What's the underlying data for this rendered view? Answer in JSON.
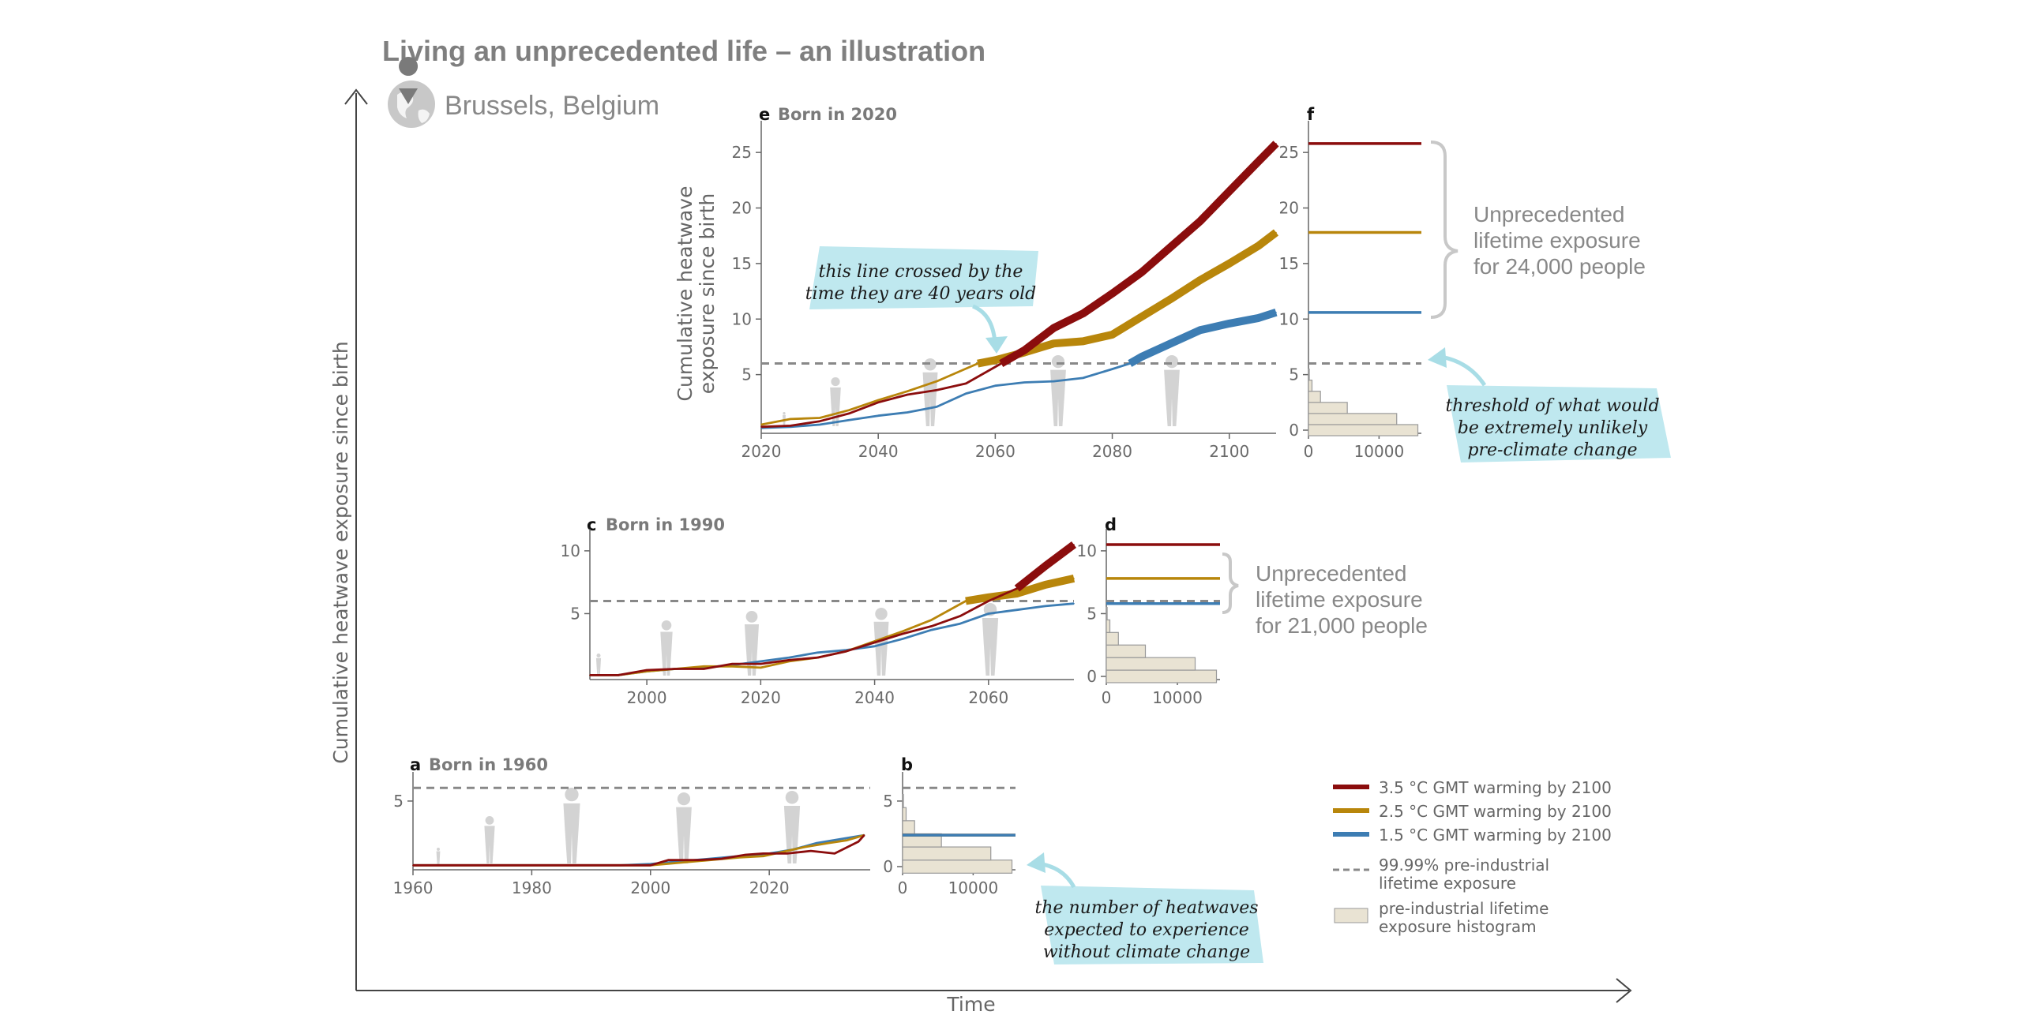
{
  "page": {
    "title": "Living an unprecedented life – an illustration",
    "location": "Brussels, Belgium",
    "outer_y_label": "Cumulative heatwave exposure since birth",
    "outer_x_label": "Time"
  },
  "colors": {
    "s35": "#8b0d0d",
    "s25": "#b8860b",
    "s15": "#3d7db3",
    "threshold": "#888888",
    "hist": "#e9e3d3",
    "callout": "#bfe8ef",
    "silhouette": "#d3d3d3"
  },
  "legend": {
    "items": [
      {
        "label": "3.5 °C GMT warming by 2100",
        "kind": "line",
        "color": "#8b0d0d"
      },
      {
        "label": "2.5 °C GMT warming by 2100",
        "kind": "line",
        "color": "#b8860b"
      },
      {
        "label": "1.5 °C GMT warming by 2100",
        "kind": "line",
        "color": "#3d7db3"
      },
      {
        "label": "99.99% pre-industrial",
        "label2": "lifetime exposure",
        "kind": "dash",
        "color": "#888888"
      },
      {
        "label": "pre-industrial lifetime",
        "label2": "exposure histogram",
        "kind": "box",
        "color": "#e9e3d3"
      }
    ]
  },
  "annotations": {
    "crossed": [
      "this line crossed by the",
      "time they are 40 years old"
    ],
    "threshold": [
      "threshold of what would",
      "be extremely unlikely",
      "pre-climate change"
    ],
    "heatwaves": [
      "the number of heatwaves",
      "expected to experience",
      "without climate change"
    ],
    "unprecedented_f": [
      "Unprecedented",
      "lifetime exposure",
      "for 24,000 people"
    ],
    "unprecedented_d": [
      "Unprecedented",
      "lifetime exposure",
      "for 21,000 people"
    ]
  },
  "chart_data": [
    {
      "id": "a",
      "type": "line",
      "title": "Born in 1960",
      "xlim": [
        1960,
        2037
      ],
      "ylim": [
        0,
        6.5
      ],
      "xticks": [
        1960,
        1980,
        2000,
        2020
      ],
      "yticks": [
        5
      ],
      "threshold": 6,
      "series": [
        {
          "name": "3.5 °C GMT warming by 2100",
          "color": "#8b0d0d",
          "x": [
            1960,
            1990,
            2000,
            2003,
            2008,
            2012,
            2016,
            2019,
            2023,
            2027,
            2031,
            2035,
            2036
          ],
          "y": [
            0.1,
            0.1,
            0.1,
            0.5,
            0.5,
            0.6,
            0.9,
            1.0,
            1.0,
            1.2,
            1.0,
            1.9,
            2.4
          ]
        },
        {
          "name": "2.5 °C GMT warming by 2100",
          "color": "#b8860b",
          "x": [
            1960,
            1990,
            2000,
            2005,
            2010,
            2015,
            2019,
            2023,
            2026,
            2030,
            2033,
            2036
          ],
          "y": [
            0.1,
            0.1,
            0.1,
            0.3,
            0.5,
            0.7,
            0.8,
            1.2,
            1.5,
            1.8,
            2.0,
            2.4
          ]
        },
        {
          "name": "1.5 °C GMT warming by 2100",
          "color": "#3d7db3",
          "x": [
            1960,
            1995,
            2000,
            2005,
            2010,
            2015,
            2020,
            2024,
            2028,
            2032,
            2036
          ],
          "y": [
            0.1,
            0.1,
            0.2,
            0.4,
            0.6,
            0.8,
            1.0,
            1.3,
            1.8,
            2.1,
            2.4
          ]
        }
      ]
    },
    {
      "id": "b",
      "type": "histogram",
      "title": "",
      "xlim": [
        0,
        16000
      ],
      "ylim": [
        0,
        6.5
      ],
      "xticks": [
        0,
        10000
      ],
      "yticks": [
        0,
        5
      ],
      "threshold": 6,
      "bins": [
        {
          "y0": -0.5,
          "y1": 0.5,
          "count": 15500
        },
        {
          "y0": 0.5,
          "y1": 1.5,
          "count": 12500
        },
        {
          "y0": 1.5,
          "y1": 2.5,
          "count": 5500
        },
        {
          "y0": 2.5,
          "y1": 3.5,
          "count": 1700
        },
        {
          "y0": 3.5,
          "y1": 4.5,
          "count": 500
        },
        {
          "y0": 4.5,
          "y1": 5.5,
          "count": 120
        }
      ],
      "levels": [
        {
          "name": "3.5 °C GMT warming by 2100",
          "color": "#8b0d0d",
          "value": 2.4
        },
        {
          "name": "2.5 °C GMT warming by 2100",
          "color": "#b8860b",
          "value": 2.4
        },
        {
          "name": "1.5 °C GMT warming by 2100",
          "color": "#3d7db3",
          "value": 2.4
        }
      ]
    },
    {
      "id": "c",
      "type": "line",
      "title": "Born in 1990",
      "xlim": [
        1990,
        2075
      ],
      "ylim": [
        0,
        11
      ],
      "xticks": [
        2000,
        2020,
        2040,
        2060
      ],
      "yticks": [
        5,
        10
      ],
      "threshold": 6,
      "thick_start": {
        "3.5 °C GMT warming by 2100": 2061,
        "2.5 °C GMT warming by 2100": 2056
      },
      "series": [
        {
          "name": "3.5 °C GMT warming by 2100",
          "color": "#8b0d0d",
          "x": [
            1990,
            1995,
            2000,
            2005,
            2010,
            2015,
            2020,
            2025,
            2030,
            2035,
            2040,
            2045,
            2050,
            2055,
            2060,
            2065,
            2070,
            2075
          ],
          "y": [
            0.1,
            0.1,
            0.5,
            0.6,
            0.6,
            1.0,
            1.0,
            1.3,
            1.5,
            2.0,
            2.7,
            3.4,
            4.0,
            4.8,
            6.0,
            7.0,
            8.8,
            10.5
          ]
        },
        {
          "name": "2.5 °C GMT warming by 2100",
          "color": "#b8860b",
          "x": [
            1990,
            1995,
            2000,
            2005,
            2010,
            2015,
            2020,
            2025,
            2030,
            2035,
            2040,
            2045,
            2050,
            2056,
            2060,
            2065,
            2070,
            2075
          ],
          "y": [
            0.1,
            0.1,
            0.4,
            0.6,
            0.8,
            0.8,
            0.7,
            1.2,
            1.5,
            2.0,
            2.8,
            3.6,
            4.5,
            6.0,
            6.3,
            6.6,
            7.3,
            7.8
          ]
        },
        {
          "name": "1.5 °C GMT warming by 2100",
          "color": "#3d7db3",
          "x": [
            1990,
            1995,
            2000,
            2005,
            2010,
            2015,
            2020,
            2025,
            2030,
            2035,
            2040,
            2045,
            2050,
            2055,
            2060,
            2065,
            2070,
            2075
          ],
          "y": [
            0.1,
            0.1,
            0.4,
            0.6,
            0.7,
            0.9,
            1.2,
            1.5,
            1.9,
            2.1,
            2.4,
            3.0,
            3.7,
            4.2,
            5.0,
            5.3,
            5.6,
            5.8
          ]
        }
      ]
    },
    {
      "id": "d",
      "type": "histogram",
      "title": "",
      "xlim": [
        0,
        16000
      ],
      "ylim": [
        0,
        11
      ],
      "xticks": [
        0,
        10000
      ],
      "yticks": [
        0,
        5,
        10
      ],
      "threshold": 6,
      "bins": [
        {
          "y0": -0.5,
          "y1": 0.5,
          "count": 15500
        },
        {
          "y0": 0.5,
          "y1": 1.5,
          "count": 12500
        },
        {
          "y0": 1.5,
          "y1": 2.5,
          "count": 5500
        },
        {
          "y0": 2.5,
          "y1": 3.5,
          "count": 1700
        },
        {
          "y0": 3.5,
          "y1": 4.5,
          "count": 500
        },
        {
          "y0": 4.5,
          "y1": 5.5,
          "count": 120
        }
      ],
      "levels": [
        {
          "name": "3.5 °C GMT warming by 2100",
          "color": "#8b0d0d",
          "value": 10.5
        },
        {
          "name": "2.5 °C GMT warming by 2100",
          "color": "#b8860b",
          "value": 7.8
        },
        {
          "name": "1.5 °C GMT warming by 2100",
          "color": "#3d7db3",
          "value": 5.8
        }
      ]
    },
    {
      "id": "e",
      "type": "line",
      "title": "Born in 2020",
      "ylabel": [
        "Cumulative heatwave",
        "exposure since birth"
      ],
      "xlim": [
        2020,
        2108
      ],
      "ylim": [
        0,
        27
      ],
      "xticks": [
        2020,
        2040,
        2060,
        2080,
        2100
      ],
      "yticks": [
        5,
        10,
        15,
        20,
        25
      ],
      "threshold": 6,
      "thick_start": {
        "3.5 °C GMT warming by 2100": 2061,
        "2.5 °C GMT warming by 2100": 2057,
        "1.5 °C GMT warming by 2100": 2083
      },
      "series": [
        {
          "name": "3.5 °C GMT warming by 2100",
          "color": "#8b0d0d",
          "x": [
            2020,
            2025,
            2030,
            2035,
            2040,
            2045,
            2050,
            2055,
            2061,
            2065,
            2070,
            2075,
            2080,
            2085,
            2090,
            2095,
            2100,
            2105,
            2108
          ],
          "y": [
            0.3,
            0.4,
            0.8,
            1.5,
            2.5,
            3.2,
            3.6,
            4.2,
            6.0,
            7.2,
            9.2,
            10.5,
            12.3,
            14.2,
            16.5,
            18.8,
            21.5,
            24.2,
            25.8
          ]
        },
        {
          "name": "2.5 °C GMT warming by 2100",
          "color": "#b8860b",
          "x": [
            2020,
            2025,
            2030,
            2035,
            2040,
            2045,
            2050,
            2057,
            2060,
            2065,
            2070,
            2075,
            2080,
            2085,
            2090,
            2095,
            2100,
            2105,
            2108
          ],
          "y": [
            0.5,
            1.0,
            1.1,
            1.8,
            2.7,
            3.5,
            4.4,
            6.0,
            6.3,
            7.0,
            7.8,
            8.0,
            8.6,
            10.2,
            11.8,
            13.5,
            15.0,
            16.6,
            17.8
          ]
        },
        {
          "name": "1.5 °C GMT warming by 2100",
          "color": "#3d7db3",
          "x": [
            2020,
            2025,
            2030,
            2035,
            2040,
            2045,
            2050,
            2055,
            2060,
            2065,
            2070,
            2075,
            2080,
            2083,
            2085,
            2090,
            2095,
            2100,
            2105,
            2108
          ],
          "y": [
            0.2,
            0.3,
            0.5,
            0.9,
            1.3,
            1.6,
            2.1,
            3.3,
            4.0,
            4.3,
            4.4,
            4.7,
            5.5,
            6.0,
            6.6,
            7.8,
            9.0,
            9.6,
            10.1,
            10.6
          ]
        }
      ]
    },
    {
      "id": "f",
      "type": "histogram",
      "title": "",
      "xlim": [
        0,
        16000
      ],
      "ylim": [
        0,
        27
      ],
      "xticks": [
        0,
        10000
      ],
      "yticks": [
        0,
        5,
        10,
        15,
        20,
        25
      ],
      "threshold": 6,
      "bins": [
        {
          "y0": -0.5,
          "y1": 0.5,
          "count": 15500
        },
        {
          "y0": 0.5,
          "y1": 1.5,
          "count": 12500
        },
        {
          "y0": 1.5,
          "y1": 2.5,
          "count": 5500
        },
        {
          "y0": 2.5,
          "y1": 3.5,
          "count": 1700
        },
        {
          "y0": 3.5,
          "y1": 4.5,
          "count": 500
        },
        {
          "y0": 4.5,
          "y1": 5.5,
          "count": 120
        }
      ],
      "levels": [
        {
          "name": "3.5 °C GMT warming by 2100",
          "color": "#8b0d0d",
          "value": 25.8
        },
        {
          "name": "2.5 °C GMT warming by 2100",
          "color": "#b8860b",
          "value": 17.8
        },
        {
          "name": "1.5 °C GMT warming by 2100",
          "color": "#3d7db3",
          "value": 10.6
        }
      ]
    }
  ]
}
